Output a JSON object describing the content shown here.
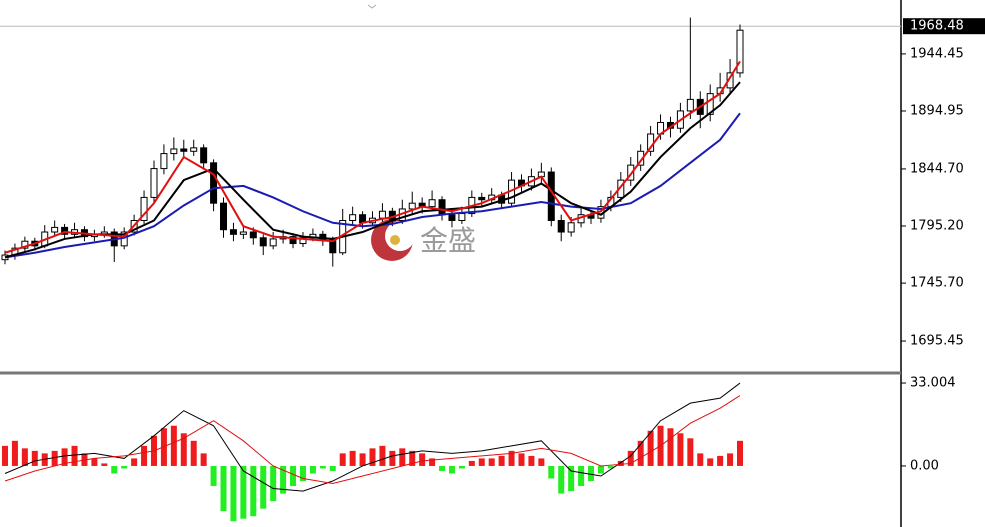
{
  "chart_data": [
    {
      "type": "candlestick",
      "panel": "price",
      "ylim": [
        1668.6,
        1991.2
      ],
      "yticks": [
        1944.45,
        1894.95,
        {
          "value": 1844.7,
          "label": "1844.70"
        },
        {
          "value": 1795.2,
          "label": "1795.20"
        },
        {
          "value": 1745.7,
          "label": "1745.70"
        },
        1695.45
      ],
      "current_price": 1968.48,
      "watermark": "金盛",
      "up_color": "#ffffff",
      "down_color": "#000000",
      "candles": [
        [
          1766,
          1774,
          1762,
          1770
        ],
        [
          1770,
          1780,
          1766,
          1776
        ],
        [
          1776,
          1786,
          1772,
          1782
        ],
        [
          1782,
          1785,
          1774,
          1778
        ],
        [
          1778,
          1796,
          1776,
          1790
        ],
        [
          1790,
          1800,
          1786,
          1794
        ],
        [
          1794,
          1797,
          1784,
          1788
        ],
        [
          1788,
          1798,
          1785,
          1792
        ],
        [
          1792,
          1795,
          1782,
          1786
        ],
        [
          1786,
          1792,
          1782,
          1788
        ],
        [
          1788,
          1795,
          1785,
          1790
        ],
        [
          1790,
          1793,
          1764,
          1778
        ],
        [
          1778,
          1794,
          1775,
          1790
        ],
        [
          1790,
          1805,
          1787,
          1800
        ],
        [
          1800,
          1826,
          1797,
          1820
        ],
        [
          1820,
          1852,
          1816,
          1845
        ],
        [
          1845,
          1866,
          1840,
          1858
        ],
        [
          1858,
          1872,
          1852,
          1862
        ],
        [
          1862,
          1870,
          1854,
          1860
        ],
        [
          1860,
          1870,
          1856,
          1863
        ],
        [
          1863,
          1866,
          1845,
          1850
        ],
        [
          1850,
          1853,
          1808,
          1815
        ],
        [
          1815,
          1820,
          1785,
          1792
        ],
        [
          1792,
          1798,
          1782,
          1788
        ],
        [
          1788,
          1796,
          1784,
          1790
        ],
        [
          1790,
          1794,
          1779,
          1785
        ],
        [
          1785,
          1788,
          1770,
          1778
        ],
        [
          1778,
          1790,
          1775,
          1784
        ],
        [
          1784,
          1792,
          1780,
          1786
        ],
        [
          1786,
          1789,
          1776,
          1780
        ],
        [
          1780,
          1790,
          1777,
          1785
        ],
        [
          1785,
          1793,
          1782,
          1788
        ],
        [
          1788,
          1791,
          1778,
          1783
        ],
        [
          1783,
          1786,
          1760,
          1772
        ],
        [
          1772,
          1810,
          1770,
          1800
        ],
        [
          1800,
          1812,
          1796,
          1805
        ],
        [
          1805,
          1808,
          1793,
          1798
        ],
        [
          1798,
          1808,
          1795,
          1802
        ],
        [
          1802,
          1815,
          1799,
          1808
        ],
        [
          1808,
          1811,
          1795,
          1800
        ],
        [
          1800,
          1818,
          1797,
          1810
        ],
        [
          1810,
          1825,
          1806,
          1815
        ],
        [
          1815,
          1820,
          1806,
          1812
        ],
        [
          1812,
          1826,
          1808,
          1818
        ],
        [
          1818,
          1821,
          1800,
          1805
        ],
        [
          1805,
          1809,
          1794,
          1800
        ],
        [
          1800,
          1812,
          1797,
          1806
        ],
        [
          1806,
          1826,
          1803,
          1820
        ],
        [
          1820,
          1824,
          1813,
          1818
        ],
        [
          1818,
          1828,
          1814,
          1822
        ],
        [
          1822,
          1825,
          1810,
          1815
        ],
        [
          1815,
          1842,
          1812,
          1835
        ],
        [
          1835,
          1840,
          1825,
          1830
        ],
        [
          1830,
          1845,
          1826,
          1838
        ],
        [
          1838,
          1850,
          1832,
          1842
        ],
        [
          1842,
          1846,
          1795,
          1800
        ],
        [
          1800,
          1805,
          1782,
          1790
        ],
        [
          1790,
          1803,
          1786,
          1798
        ],
        [
          1798,
          1812,
          1794,
          1805
        ],
        [
          1805,
          1809,
          1797,
          1802
        ],
        [
          1802,
          1818,
          1798,
          1812
        ],
        [
          1812,
          1826,
          1808,
          1820
        ],
        [
          1820,
          1842,
          1816,
          1835
        ],
        [
          1835,
          1855,
          1830,
          1848
        ],
        [
          1848,
          1866,
          1843,
          1860
        ],
        [
          1860,
          1882,
          1856,
          1875
        ],
        [
          1875,
          1892,
          1870,
          1885
        ],
        [
          1885,
          1890,
          1872,
          1880
        ],
        [
          1880,
          1902,
          1876,
          1895
        ],
        [
          1895,
          1976,
          1888,
          1905
        ],
        [
          1905,
          1912,
          1880,
          1892
        ],
        [
          1892,
          1918,
          1886,
          1910
        ],
        [
          1910,
          1928,
          1903,
          1915
        ],
        [
          1915,
          1940,
          1910,
          1928
        ],
        [
          1928,
          1970,
          1924,
          1965
        ]
      ],
      "lines": [
        {
          "color": "#1b1bb3",
          "x": [
            0,
            3,
            6,
            9,
            12,
            15,
            18,
            21,
            24,
            27,
            30,
            33,
            36,
            39,
            42,
            45,
            48,
            51,
            54,
            57,
            60,
            63,
            66,
            69,
            72,
            74
          ],
          "values": [
            1768,
            1772,
            1777,
            1781,
            1785,
            1795,
            1813,
            1828,
            1830,
            1820,
            1808,
            1798,
            1795,
            1797,
            1803,
            1806,
            1808,
            1812,
            1816,
            1812,
            1810,
            1815,
            1830,
            1850,
            1870,
            1893
          ]
        },
        {
          "color": "#000000",
          "x": [
            0,
            3,
            6,
            9,
            12,
            15,
            18,
            21,
            24,
            27,
            30,
            33,
            36,
            39,
            42,
            45,
            48,
            51,
            54,
            57,
            60,
            63,
            66,
            69,
            72,
            74
          ],
          "values": [
            1768,
            1775,
            1784,
            1788,
            1788,
            1800,
            1835,
            1845,
            1818,
            1792,
            1786,
            1784,
            1790,
            1800,
            1808,
            1810,
            1812,
            1820,
            1832,
            1815,
            1805,
            1825,
            1855,
            1880,
            1900,
            1920
          ]
        },
        {
          "color": "#e01010",
          "x": [
            0,
            3,
            6,
            9,
            12,
            15,
            18,
            21,
            24,
            27,
            30,
            33,
            36,
            39,
            42,
            45,
            48,
            51,
            54,
            57,
            60,
            63,
            66,
            69,
            72,
            74
          ],
          "values": [
            1772,
            1780,
            1790,
            1788,
            1786,
            1815,
            1855,
            1840,
            1795,
            1786,
            1784,
            1782,
            1798,
            1803,
            1812,
            1808,
            1815,
            1826,
            1838,
            1800,
            1808,
            1840,
            1875,
            1893,
            1910,
            1938
          ]
        }
      ]
    },
    {
      "type": "macd",
      "panel": "indicator",
      "ylim": [
        -24.3,
        36.2
      ],
      "yticks": [
        33.004,
        {
          "value": 0,
          "label": "0.00"
        }
      ],
      "pos_color": "#ee1c1c",
      "neg_color": "#22ee22",
      "values": [
        8,
        10,
        7,
        6,
        5,
        6,
        7,
        8,
        5,
        3,
        1,
        -3,
        -1,
        3,
        8,
        12,
        15,
        16,
        13,
        10,
        5,
        -8,
        -18,
        -22,
        -21,
        -20,
        -17,
        -14,
        -11,
        -8,
        -6,
        -3,
        -1,
        -2,
        5,
        6,
        5,
        7,
        8,
        6,
        7,
        6,
        5,
        3,
        -2,
        -3,
        -1,
        2,
        3,
        3,
        4,
        6,
        5,
        4,
        3,
        -5,
        -11,
        -10,
        -8,
        -6,
        -3,
        -1,
        2,
        6,
        10,
        14,
        16,
        15,
        13,
        11,
        5,
        3,
        4,
        5,
        10
      ],
      "lines": [
        {
          "color": "#000000",
          "x": [
            0,
            3,
            6,
            9,
            12,
            15,
            18,
            21,
            24,
            27,
            30,
            33,
            36,
            39,
            42,
            45,
            48,
            51,
            54,
            57,
            60,
            63,
            66,
            69,
            72,
            74
          ],
          "values": [
            -3,
            2,
            4,
            5,
            3,
            12,
            22,
            16,
            -2,
            -9,
            -10,
            -6,
            0,
            4,
            6,
            5,
            6,
            8,
            10,
            -2,
            -4,
            4,
            18,
            25,
            27,
            33
          ]
        },
        {
          "color": "#e01010",
          "x": [
            0,
            3,
            6,
            9,
            12,
            15,
            18,
            21,
            24,
            27,
            30,
            33,
            36,
            39,
            42,
            45,
            48,
            51,
            54,
            57,
            60,
            63,
            66,
            69,
            72,
            74
          ],
          "values": [
            -6,
            -2,
            1,
            3,
            4,
            6,
            11,
            18,
            10,
            0,
            -5,
            -7,
            -4,
            -1,
            2,
            3,
            4,
            5,
            7,
            5,
            0,
            1,
            8,
            17,
            23,
            28
          ]
        }
      ]
    }
  ]
}
